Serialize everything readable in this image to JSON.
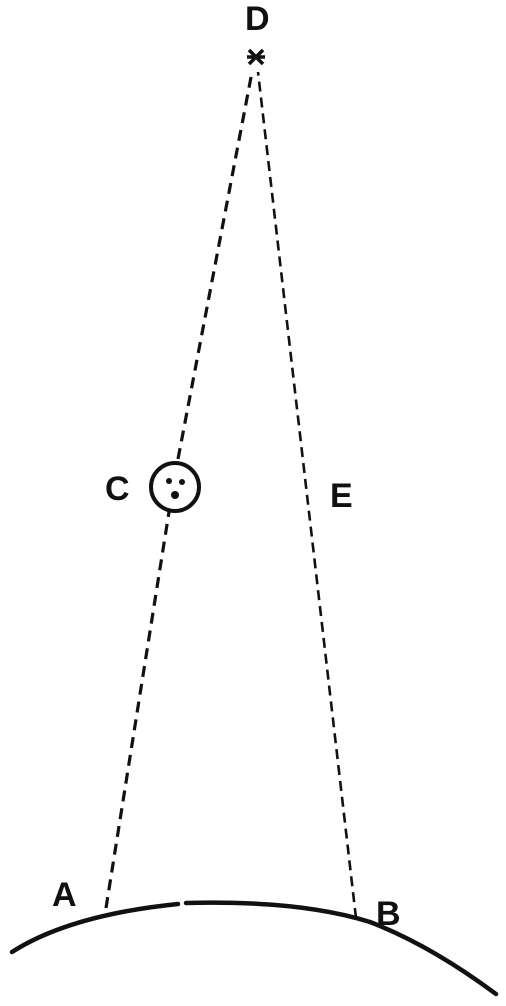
{
  "labels": {
    "a": "A",
    "b": "B",
    "c": "C",
    "d": "D",
    "e": "E"
  },
  "colors": {
    "ink": "#111111",
    "background": "#ffffff"
  },
  "symbols": {
    "star": "star-icon",
    "moon": "moon-face-icon"
  }
}
